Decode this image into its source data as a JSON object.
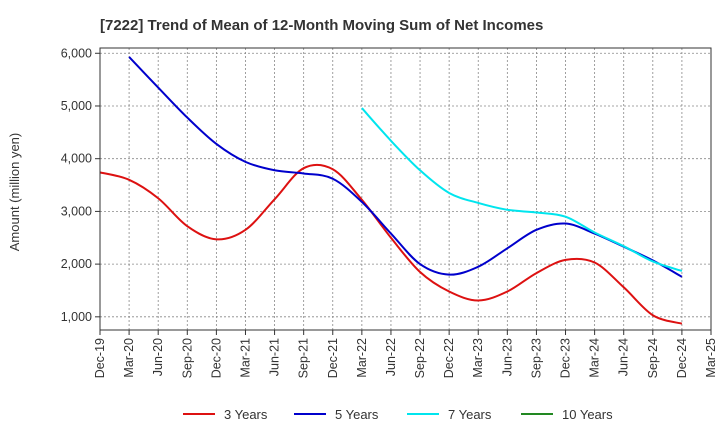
{
  "chart_data": {
    "type": "line",
    "title": "[7222]  Trend of Mean of 12-Month Moving Sum of Net Incomes",
    "xlabel": "",
    "ylabel": "Amount (million yen)",
    "ylim": [
      750,
      6100
    ],
    "yticks": [
      1000,
      2000,
      3000,
      4000,
      5000,
      6000
    ],
    "ytick_labels": [
      "1,000",
      "2,000",
      "3,000",
      "4,000",
      "5,000",
      "6,000"
    ],
    "xtick_labels": [
      "Dec-19",
      "Mar-20",
      "Jun-20",
      "Sep-20",
      "Dec-20",
      "Mar-21",
      "Jun-21",
      "Sep-21",
      "Dec-21",
      "Mar-22",
      "Jun-22",
      "Sep-22",
      "Dec-22",
      "Mar-23",
      "Jun-23",
      "Sep-23",
      "Dec-23",
      "Mar-24",
      "Jun-24",
      "Sep-24",
      "Dec-24",
      "Mar-25"
    ],
    "grid": true,
    "legend_position": "bottom",
    "series": [
      {
        "name": "3 Years",
        "color": "#dd1111",
        "start_index": 0,
        "values": [
          3740,
          3600,
          3250,
          2720,
          2470,
          2650,
          3230,
          3820,
          3800,
          3220,
          2500,
          1850,
          1480,
          1310,
          1480,
          1830,
          2080,
          2030,
          1560,
          1030,
          870
        ]
      },
      {
        "name": "5 Years",
        "color": "#0000cc",
        "start_index": 1,
        "values": [
          5930,
          5350,
          4780,
          4280,
          3940,
          3780,
          3720,
          3620,
          3180,
          2580,
          2000,
          1800,
          1950,
          2300,
          2650,
          2770,
          2580,
          2330,
          2070,
          1760
        ]
      },
      {
        "name": "7 Years",
        "color": "#00e5ee",
        "start_index": 9,
        "values": [
          4960,
          4340,
          3780,
          3350,
          3160,
          3030,
          2980,
          2900,
          2600,
          2340,
          2050,
          1870
        ]
      },
      {
        "name": "10 Years",
        "color": "#228822",
        "start_index": 0,
        "values": []
      }
    ]
  }
}
